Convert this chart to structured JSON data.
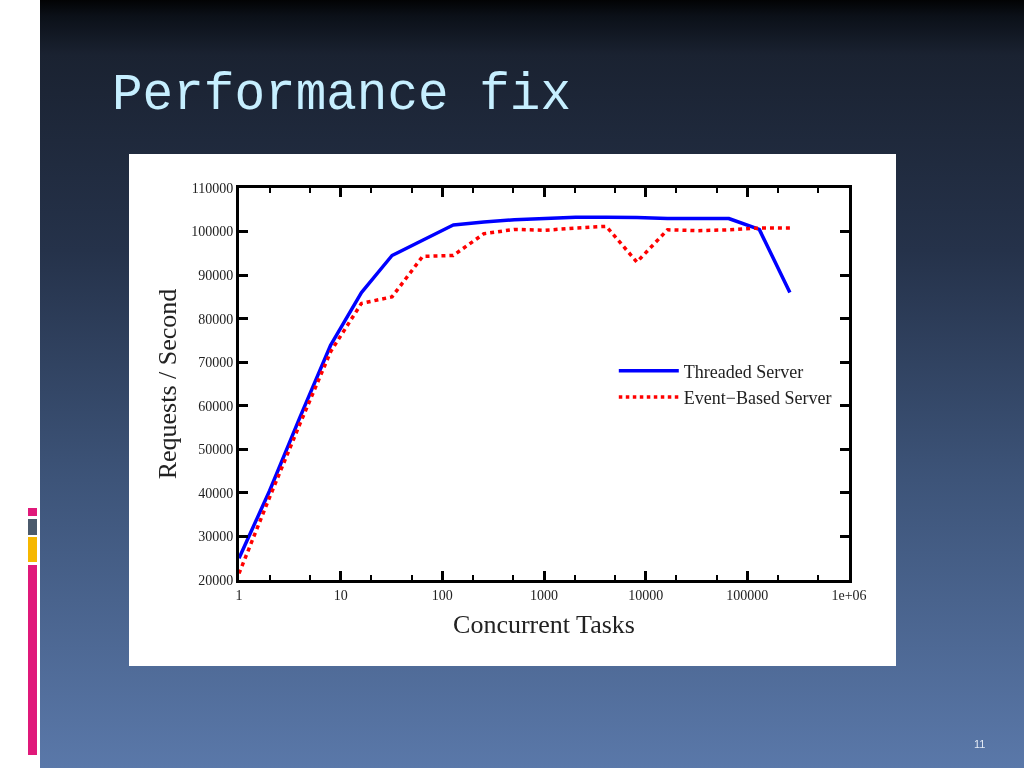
{
  "chart_data": {
    "type": "line",
    "title": "Performance fix",
    "xlabel": "Concurrent Tasks",
    "ylabel": "Requests / Second",
    "annotations": [
      "11"
    ],
    "log": "x",
    "x": [
      1,
      2,
      4,
      8,
      16,
      32,
      64,
      128,
      256,
      512,
      1024,
      2048,
      4096,
      8192,
      16384,
      32768,
      65536,
      131072,
      262144
    ],
    "series": [
      {
        "name": "Threaded Server",
        "color": "#0000ff",
        "line_style": "solid",
        "values": [
          25000,
          40500,
          57500,
          74000,
          86000,
          94500,
          98000,
          101500,
          102200,
          102700,
          103000,
          103300,
          103300,
          103200,
          103000,
          103000,
          103000,
          100500,
          86000
        ]
      },
      {
        "name": "Event−Based Server",
        "color": "#ff0000",
        "line_style": "dotted",
        "values": [
          21500,
          39000,
          56000,
          72500,
          83500,
          85000,
          94300,
          94500,
          99500,
          100500,
          100300,
          100800,
          101200,
          93000,
          100400,
          100200,
          100400,
          100800,
          100800
        ]
      }
    ],
    "xlim": [
      1,
      1000000
    ],
    "xticks": [
      1,
      10,
      100,
      1000,
      10000,
      100000,
      {
        "value": 1000000,
        "label": "1e+06"
      }
    ],
    "ylim": [
      20000,
      110000
    ],
    "yticks": [
      20000,
      30000,
      40000,
      50000,
      60000,
      70000,
      80000,
      90000,
      100000,
      110000
    ],
    "legend": "right"
  }
}
